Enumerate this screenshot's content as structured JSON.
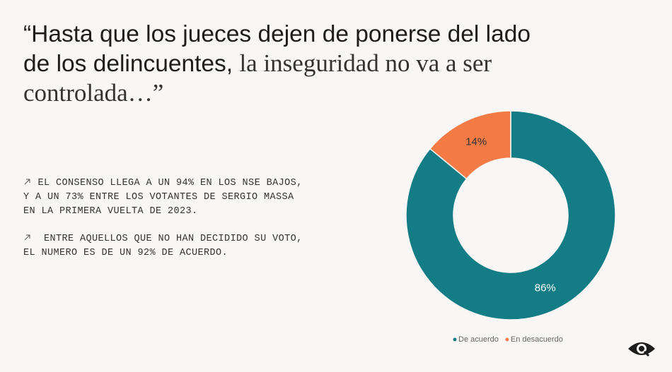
{
  "header": {
    "title_sans": "“Hasta que los jueces dejen de ponerse del lado de los delincuentes,",
    "title_serif": "la inseguridad no va a ser controlada…”"
  },
  "notes": [
    [
      "EL CONSENSO LLEGA A UN 94% EN LOS NSE BAJOS,",
      "Y A UN 73% ENTRE LOS VOTANTES DE SERGIO MASSA",
      "EN LA PRIMERA VUELTA DE 2023."
    ],
    [
      "ENTRE AQUELLOS QUE NO HAN DECIDIDO SU VOTO,",
      "EL NUMERO ES DE UN 92% DE ACUERDO."
    ]
  ],
  "chart_data": {
    "type": "pie",
    "donut": true,
    "categories": [
      "De acuerdo",
      "En desacuerdo"
    ],
    "values": [
      86,
      14
    ],
    "value_labels": [
      "86%",
      "14%"
    ],
    "colors": [
      "#137c85",
      "#f47b45"
    ]
  }
}
